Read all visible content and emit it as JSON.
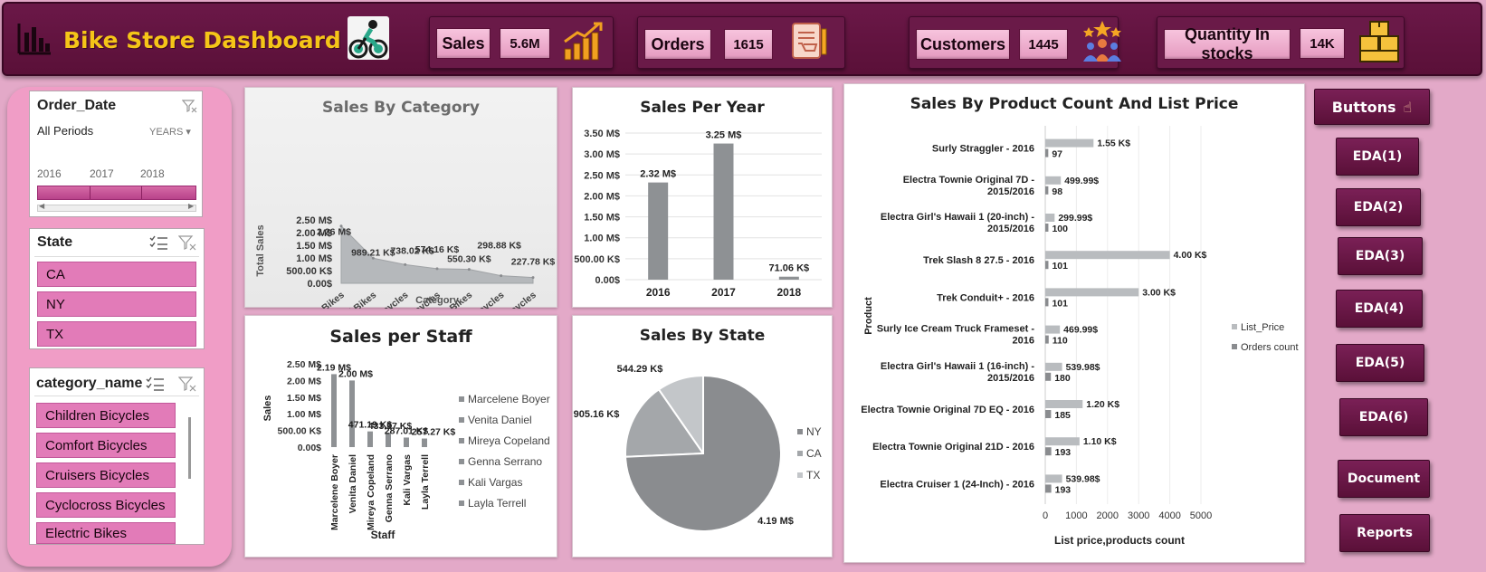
{
  "header": {
    "title": "Bike Store Dashboard",
    "kpis": [
      {
        "label": "Sales",
        "value": "5.6M",
        "icon": "bar-growth-icon"
      },
      {
        "label": "Orders",
        "value": "1615",
        "icon": "order-list-icon"
      },
      {
        "label": "Customers",
        "value": "1445",
        "icon": "customers-stars-icon"
      },
      {
        "label": "Quantity In stocks",
        "value": "14K",
        "icon": "boxes-stock-icon"
      }
    ]
  },
  "slicers": {
    "order_date": {
      "title": "Order_Date",
      "period_label": "All Periods",
      "level": "YEARS",
      "years": [
        "2016",
        "2017",
        "2018"
      ]
    },
    "state": {
      "title": "State",
      "items": [
        "CA",
        "NY",
        "TX"
      ]
    },
    "category": {
      "title": "category_name",
      "items": [
        "Children Bicycles",
        "Comfort Bicycles",
        "Cruisers Bicycles",
        "Cyclocross Bicycles",
        "Electric Bikes"
      ]
    }
  },
  "chart_data": [
    {
      "type": "area",
      "title": "Sales By Category",
      "xlabel": "Category",
      "ylabel": "Total Sales",
      "categories": [
        "Mountain Bikes",
        "Road Bikes",
        "Cruisers Bicycles",
        "Cyclocross Bicycles",
        "Electric Bikes",
        "Comfort Bicycles",
        "Children Bicycles"
      ],
      "values": [
        2260000,
        989210,
        738020,
        574160,
        550300,
        298880,
        227780
      ],
      "data_labels": [
        "2.26 M$",
        "989.21 K$",
        "738.02 K$",
        "574.16 K$",
        "550.30 K$",
        "298.88 K$",
        "227.78 K$"
      ],
      "y_ticks": [
        "0.00$",
        "500.00 K$",
        "1.00 M$",
        "1.50 M$",
        "2.00 M$",
        "2.50 M$"
      ],
      "ylim": [
        0,
        2500000
      ]
    },
    {
      "type": "bar",
      "title": "Sales Per Year",
      "categories": [
        "2016",
        "2017",
        "2018"
      ],
      "values": [
        2320000,
        3250000,
        71060
      ],
      "data_labels": [
        "2.32 M$",
        "3.25 M$",
        "71.06 K$"
      ],
      "y_ticks": [
        "0.00$",
        "500.00 K$",
        "1.00 M$",
        "1.50 M$",
        "2.00 M$",
        "2.50 M$",
        "3.00 M$",
        "3.50 M$"
      ],
      "ylim": [
        0,
        3500000
      ],
      "grid": true
    },
    {
      "type": "bar",
      "title": "Sales per Staff",
      "xlabel": "Staff",
      "ylabel": "Sales",
      "categories": [
        "Marcelene Boyer",
        "Venita Daniel",
        "Mireya Copeland",
        "Genna Serrano",
        "Kali Vargas",
        "Layla Terrell"
      ],
      "values": [
        2190000,
        2000000,
        471190,
        433970,
        287010,
        257270
      ],
      "data_labels": [
        "2.19 M$",
        "2.00 M$",
        "471.19 K$",
        "433.97 K$",
        "287.01 K$",
        "257.27 K$"
      ],
      "y_ticks": [
        "0.00$",
        "500.00 K$",
        "1.00 M$",
        "1.50 M$",
        "2.00 M$",
        "2.50 M$"
      ],
      "ylim": [
        0,
        2500000
      ],
      "legend": [
        "Marcelene Boyer",
        "Venita Daniel",
        "Mireya Copeland",
        "Genna Serrano",
        "Kali Vargas",
        "Layla Terrell"
      ],
      "legend_position": "right"
    },
    {
      "type": "pie",
      "title": "Sales By State",
      "categories": [
        "NY",
        "CA",
        "TX"
      ],
      "values": [
        4190000,
        905160,
        544290
      ],
      "data_labels": [
        "4.19 M$",
        "905.16 K$",
        "544.29 K$"
      ],
      "colors": [
        "#8a8c8f",
        "#a4a7aa",
        "#c3c6c9"
      ],
      "legend_position": "right"
    },
    {
      "type": "bar",
      "orientation": "horizontal",
      "title": "Sales By Product Count And List Price",
      "xlabel": "List price,products count",
      "ylabel": "Product",
      "categories": [
        "Surly Straggler - 2016",
        "Electra Townie Original 7D - 2015/2016",
        "Electra Girl's Hawaii 1 (20-inch) - 2015/2016",
        "Trek Slash 8 27.5 - 2016",
        "Trek Conduit+ - 2016",
        "Surly Ice Cream Truck Frameset - 2016",
        "Electra Girl's Hawaii 1 (16-inch) - 2015/2016",
        "Electra Townie Original 7D EQ - 2016",
        "Electra Townie Original 21D - 2016",
        "Electra Cruiser 1 (24-Inch) - 2016"
      ],
      "series": [
        {
          "name": "List_Price",
          "values": [
            1549.99,
            499.99,
            299.99,
            3999.99,
            2999.99,
            469.99,
            539.98,
            1199.99,
            1099.99,
            539.98
          ],
          "data_labels": [
            "1.55 K$",
            "499.99$",
            "299.99$",
            "4.00 K$",
            "3.00 K$",
            "469.99$",
            "539.98$",
            "1.20 K$",
            "1.10 K$",
            "539.98$"
          ]
        },
        {
          "name": "Orders count",
          "values": [
            97,
            98,
            100,
            101,
            101,
            110,
            180,
            185,
            193,
            193
          ],
          "data_labels": [
            "97",
            "98",
            "100",
            "101",
            "101",
            "110",
            "180",
            "185",
            "193",
            "193"
          ]
        }
      ],
      "x_ticks": [
        "0",
        "1000",
        "2000",
        "3000",
        "4000",
        "5000"
      ],
      "xlim": [
        0,
        5000
      ],
      "legend_position": "right"
    }
  ],
  "buttons": {
    "title": "Buttons",
    "items": [
      "EDA(1)",
      "EDA(2)",
      "EDA(3)",
      "EDA(4)",
      "EDA(5)",
      "EDA(6)",
      "Document",
      "Reports"
    ]
  },
  "colors": {
    "background": "#e3a9c8",
    "header": "#5a1038",
    "accent_gold": "#f5c518",
    "slicer_item": "#e27bb8",
    "bar_gray": "#8a8c8f",
    "bar_light": "#b7babd"
  }
}
